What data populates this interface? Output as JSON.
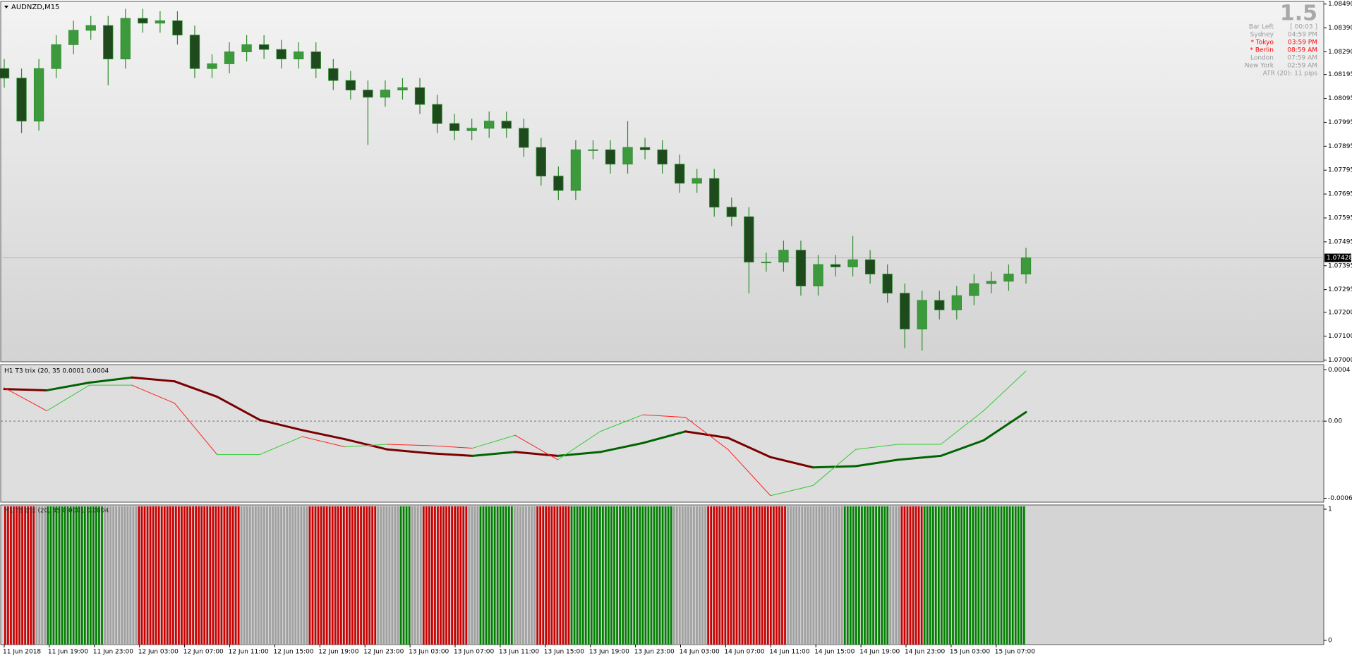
{
  "symbol_label": "AUDNZD,M15",
  "info_panel": {
    "big_value": "1.5",
    "rows": [
      {
        "label": "Bar Left",
        "value": "[ 00:03 ]",
        "color": "#9a9a9a"
      },
      {
        "label": "Sydney",
        "value": "04:59 PM",
        "color": "#9a9a9a"
      },
      {
        "label": "* Tokyo",
        "value": "03:59 PM",
        "color": "#ff0000"
      },
      {
        "label": "* Berlin",
        "value": "08:59 AM",
        "color": "#ff0000"
      },
      {
        "label": "London",
        "value": "07:59 AM",
        "color": "#9a9a9a"
      },
      {
        "label": "New York",
        "value": "02:59 AM",
        "color": "#9a9a9a"
      }
    ],
    "atr": "ATR (20): 11 pips"
  },
  "chart_data": [
    {
      "type": "candlestick",
      "up_color": "#3c9a3c",
      "down_color": "#1e4a1e",
      "wick_color": "#2e8b2e",
      "open": [
        1.0822,
        1.0818,
        1.08,
        1.0822,
        1.0832,
        1.0838,
        1.084,
        1.0826,
        1.0843,
        1.0841,
        1.0842,
        1.0836,
        1.0822,
        1.0824,
        1.0829,
        1.0832,
        1.083,
        1.0826,
        1.0829,
        1.0822,
        1.0817,
        1.0813,
        1.081,
        1.0813,
        1.0814,
        1.0807,
        1.0799,
        1.0796,
        1.0797,
        1.08,
        1.0797,
        1.0789,
        1.0777,
        1.0771,
        1.0788,
        1.0788,
        1.0782,
        1.0789,
        1.0788,
        1.0782,
        1.0774,
        1.0776,
        1.0764,
        1.076,
        1.0741,
        1.0741,
        1.0746,
        1.0731,
        1.074,
        1.0739,
        1.0742,
        1.0736,
        1.0728,
        1.0713,
        1.0725,
        1.0721,
        1.0727,
        1.0732,
        1.0733,
        1.0736
      ],
      "high": [
        1.0826,
        1.0822,
        1.0826,
        1.0836,
        1.0842,
        1.0844,
        1.0844,
        1.0847,
        1.0847,
        1.0846,
        1.0846,
        1.084,
        1.0828,
        1.0833,
        1.0836,
        1.0836,
        1.0834,
        1.0833,
        1.0833,
        1.0826,
        1.0821,
        1.0817,
        1.0817,
        1.0818,
        1.0818,
        1.0811,
        1.0803,
        1.0801,
        1.0804,
        1.0804,
        1.0801,
        1.0793,
        1.0781,
        1.0792,
        1.0792,
        1.0792,
        1.08,
        1.0793,
        1.0792,
        1.0786,
        1.078,
        1.078,
        1.0768,
        1.0764,
        1.0745,
        1.075,
        1.075,
        1.0744,
        1.0744,
        1.0752,
        1.0746,
        1.074,
        1.0732,
        1.0729,
        1.0729,
        1.0731,
        1.0736,
        1.0737,
        1.074,
        1.0747
      ],
      "low": [
        1.0814,
        1.0795,
        1.0796,
        1.0818,
        1.0828,
        1.0834,
        1.0815,
        1.0822,
        1.0837,
        1.0837,
        1.0832,
        1.0818,
        1.0818,
        1.082,
        1.0825,
        1.0826,
        1.0822,
        1.0822,
        1.0818,
        1.0813,
        1.0809,
        1.079,
        1.0806,
        1.0809,
        1.0803,
        1.0795,
        1.0792,
        1.0792,
        1.0793,
        1.0793,
        1.0785,
        1.0773,
        1.0767,
        1.0767,
        1.0784,
        1.0778,
        1.0778,
        1.0784,
        1.0778,
        1.077,
        1.077,
        1.076,
        1.0756,
        1.0728,
        1.0737,
        1.0737,
        1.0727,
        1.0727,
        1.0735,
        1.0735,
        1.0732,
        1.0724,
        1.0705,
        1.0704,
        1.0717,
        1.0717,
        1.0723,
        1.0728,
        1.0729,
        1.0732
      ],
      "close": [
        1.0818,
        1.08,
        1.0822,
        1.0832,
        1.0838,
        1.084,
        1.0826,
        1.0843,
        1.0841,
        1.0842,
        1.0836,
        1.0822,
        1.0824,
        1.0829,
        1.0832,
        1.083,
        1.0826,
        1.0829,
        1.0822,
        1.0817,
        1.0813,
        1.081,
        1.0813,
        1.0814,
        1.0807,
        1.0799,
        1.0796,
        1.0797,
        1.08,
        1.0797,
        1.0789,
        1.0777,
        1.0771,
        1.0788,
        1.0788,
        1.0782,
        1.0789,
        1.0788,
        1.0782,
        1.0774,
        1.0776,
        1.0764,
        1.076,
        1.0741,
        1.0741,
        1.0746,
        1.0731,
        1.074,
        1.0739,
        1.0742,
        1.0736,
        1.0728,
        1.0713,
        1.0725,
        1.0721,
        1.0727,
        1.0732,
        1.0733,
        1.0736,
        1.07428
      ],
      "last_price": 1.07428,
      "ylim": [
        1.06993,
        1.08501
      ],
      "yticks": [
        {
          "value": 1.0849,
          "label": "1.08490"
        },
        {
          "value": 1.0839,
          "label": "1.08390"
        },
        {
          "value": 1.0829,
          "label": "1.08290"
        },
        1.08195,
        1.08095,
        1.07995,
        1.07895,
        1.07795,
        1.07695,
        1.07595,
        1.07495,
        1.07395,
        1.07295,
        {
          "value": 1.072,
          "label": "1.07200"
        },
        {
          "value": 1.071,
          "label": "1.07100"
        },
        {
          "value": 1.07,
          "label": "1.07000"
        }
      ]
    },
    {
      "type": "line",
      "title": "H1 T3 trix (20, 35 0.0001 0.0004",
      "zero_line": true,
      "series": [
        {
          "style": "thick",
          "rise_color": "#006400",
          "fall_color": "#7a0000",
          "values": [
            0.00025,
            0.00024,
            0.0003,
            0.00034,
            0.00031,
            0.00019,
            1e-05,
            -7e-05,
            -0.00014,
            -0.00022,
            -0.00025,
            -0.00027,
            -0.00024,
            -0.00027,
            -0.00024,
            -0.00017,
            -8e-05,
            -0.00013,
            -0.00028,
            -0.00036,
            -0.00035,
            -0.0003,
            -0.00027,
            -0.00015,
            7e-05
          ]
        },
        {
          "style": "thin",
          "rise_color": "#33cc33",
          "fall_color": "#ff2020",
          "values": [
            0.00026,
            8e-05,
            0.00028,
            0.00028,
            0.00014,
            -0.00026,
            -0.00026,
            -0.00012,
            -0.0002,
            -0.00018,
            -0.00019,
            -0.00021,
            -0.00011,
            -0.0003,
            -8e-05,
            5e-05,
            3e-05,
            -0.00022,
            -0.00058,
            -0.0005,
            -0.00022,
            -0.00018,
            -0.00018,
            8e-05,
            0.00039
          ]
        }
      ],
      "ylim": [
        -0.00063,
        0.00044
      ],
      "yticks": [
        0.0004,
        {
          "value": 0,
          "label": "0.00"
        },
        -0.0006
      ]
    },
    {
      "type": "histogram-blocks",
      "title": "H1 T3 trix (20, 35 0.0001 0.0004",
      "blocks": [
        {
          "color": "#cc0000",
          "count": 11,
          "value": 1
        },
        {
          "color": "#a0a0a0",
          "count": 4,
          "value": 1
        },
        {
          "color": "#008000",
          "count": 20,
          "value": 1
        },
        {
          "color": "#a0a0a0",
          "count": 12,
          "value": 1
        },
        {
          "color": "#cc0000",
          "count": 36,
          "value": 1
        },
        {
          "color": "#a0a0a0",
          "count": 24,
          "value": 1
        },
        {
          "color": "#cc0000",
          "count": 24,
          "value": 1
        },
        {
          "color": "#a0a0a0",
          "count": 8,
          "value": 1
        },
        {
          "color": "#008000",
          "count": 4,
          "value": 1
        },
        {
          "color": "#a0a0a0",
          "count": 4,
          "value": 1
        },
        {
          "color": "#cc0000",
          "count": 16,
          "value": 1
        },
        {
          "color": "#a0a0a0",
          "count": 4,
          "value": 1
        },
        {
          "color": "#008000",
          "count": 12,
          "value": 1
        },
        {
          "color": "#a0a0a0",
          "count": 8,
          "value": 1
        },
        {
          "color": "#cc0000",
          "count": 12,
          "value": 1
        },
        {
          "color": "#008000",
          "count": 36,
          "value": 1
        },
        {
          "color": "#a0a0a0",
          "count": 12,
          "value": 1
        },
        {
          "color": "#cc0000",
          "count": 28,
          "value": 1
        },
        {
          "color": "#a0a0a0",
          "count": 20,
          "value": 1
        },
        {
          "color": "#008000",
          "count": 16,
          "value": 1
        },
        {
          "color": "#a0a0a0",
          "count": 4,
          "value": 1
        },
        {
          "color": "#cc0000",
          "count": 8,
          "value": 1
        },
        {
          "color": "#008000",
          "count": 36,
          "value": 1
        }
      ],
      "ylim": [
        0,
        1
      ],
      "yticks": [
        1,
        0
      ],
      "time_labels": [
        "11 Jun 2018",
        "11 Jun 19:00",
        "11 Jun 23:00",
        "12 Jun 03:00",
        "12 Jun 07:00",
        "12 Jun 11:00",
        "12 Jun 15:00",
        "12 Jun 19:00",
        "12 Jun 23:00",
        "13 Jun 03:00",
        "13 Jun 07:00",
        "13 Jun 11:00",
        "13 Jun 15:00",
        "13 Jun 19:00",
        "13 Jun 23:00",
        "14 Jun 03:00",
        "14 Jun 07:00",
        "14 Jun 11:00",
        "14 Jun 15:00",
        "14 Jun 19:00",
        "14 Jun 23:00",
        "15 Jun 03:00",
        "15 Jun 07:00"
      ]
    }
  ]
}
